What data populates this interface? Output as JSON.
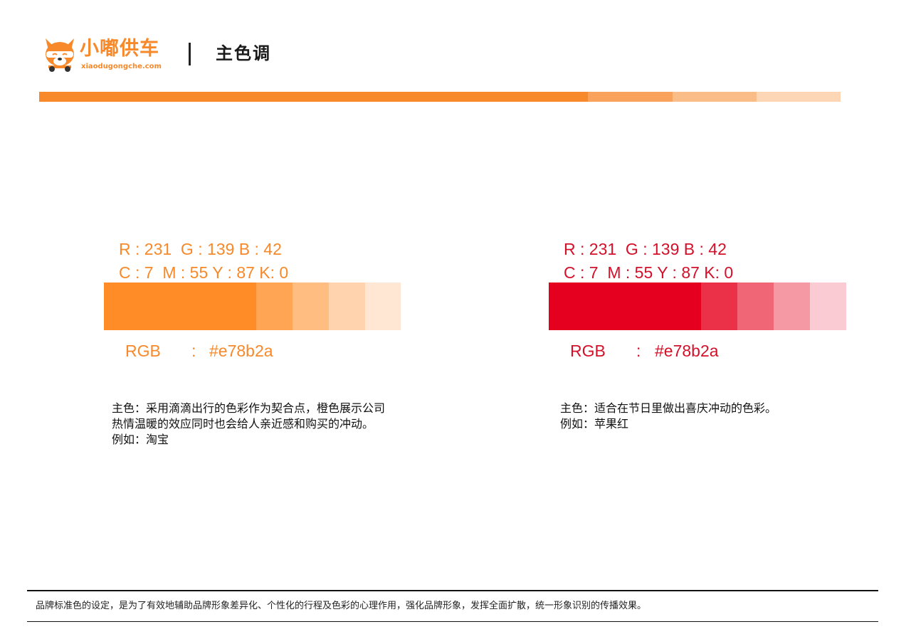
{
  "header": {
    "brand_name": "小嘟供车",
    "brand_url": "xiaodugongche.com",
    "page_title": "主色调",
    "logo_icon": "dog-face-icon"
  },
  "top_bar": {
    "segments": [
      {
        "color": "#f7892a",
        "share": 0.685
      },
      {
        "color": "#f9a25c",
        "share": 0.105
      },
      {
        "color": "#fbbd88",
        "share": 0.105
      },
      {
        "color": "#fdd7b5",
        "share": 0.105
      }
    ]
  },
  "palettes": [
    {
      "text_color": "#f7892a",
      "rgb_spec": "R : 231  G : 139 B : 42",
      "cmyk_spec": "C : 7  M : 55 Y : 87 K: 0",
      "rgb_label": "RGB",
      "rgb_sep": ":",
      "rgb_hex": "#e78b2a",
      "swatches": [
        "#ff8c26",
        "#ffa554",
        "#ffbd81",
        "#ffd3ad",
        "#ffe7d4"
      ],
      "desc_lines": [
        "主色：采用滴滴出行的色彩作为契合点，橙色展示公司",
        "热情温暖的效应同时也会给人亲近感和购买的冲动。",
        "例如：淘宝"
      ]
    },
    {
      "text_color": "#d4102a",
      "rgb_spec": "R : 231  G : 139 B : 42",
      "cmyk_spec": "C : 7  M : 55 Y : 87 K: 0",
      "rgb_label": "RGB",
      "rgb_sep": ":",
      "rgb_hex": "#e78b2a",
      "swatches": [
        "#e6001f",
        "#eb3148",
        "#f06677",
        "#f599a4",
        "#facbd2"
      ],
      "desc_lines": [
        "主色：适合在节日里做出喜庆冲动的色彩。",
        "例如：苹果红"
      ]
    }
  ],
  "footer": {
    "text": "品牌标准色的设定，是为了有效地辅助品牌形象差异化、个性化的行程及色彩的心理作用，强化品牌形象，发挥全面扩散，统一形象识别的传播效果。"
  }
}
